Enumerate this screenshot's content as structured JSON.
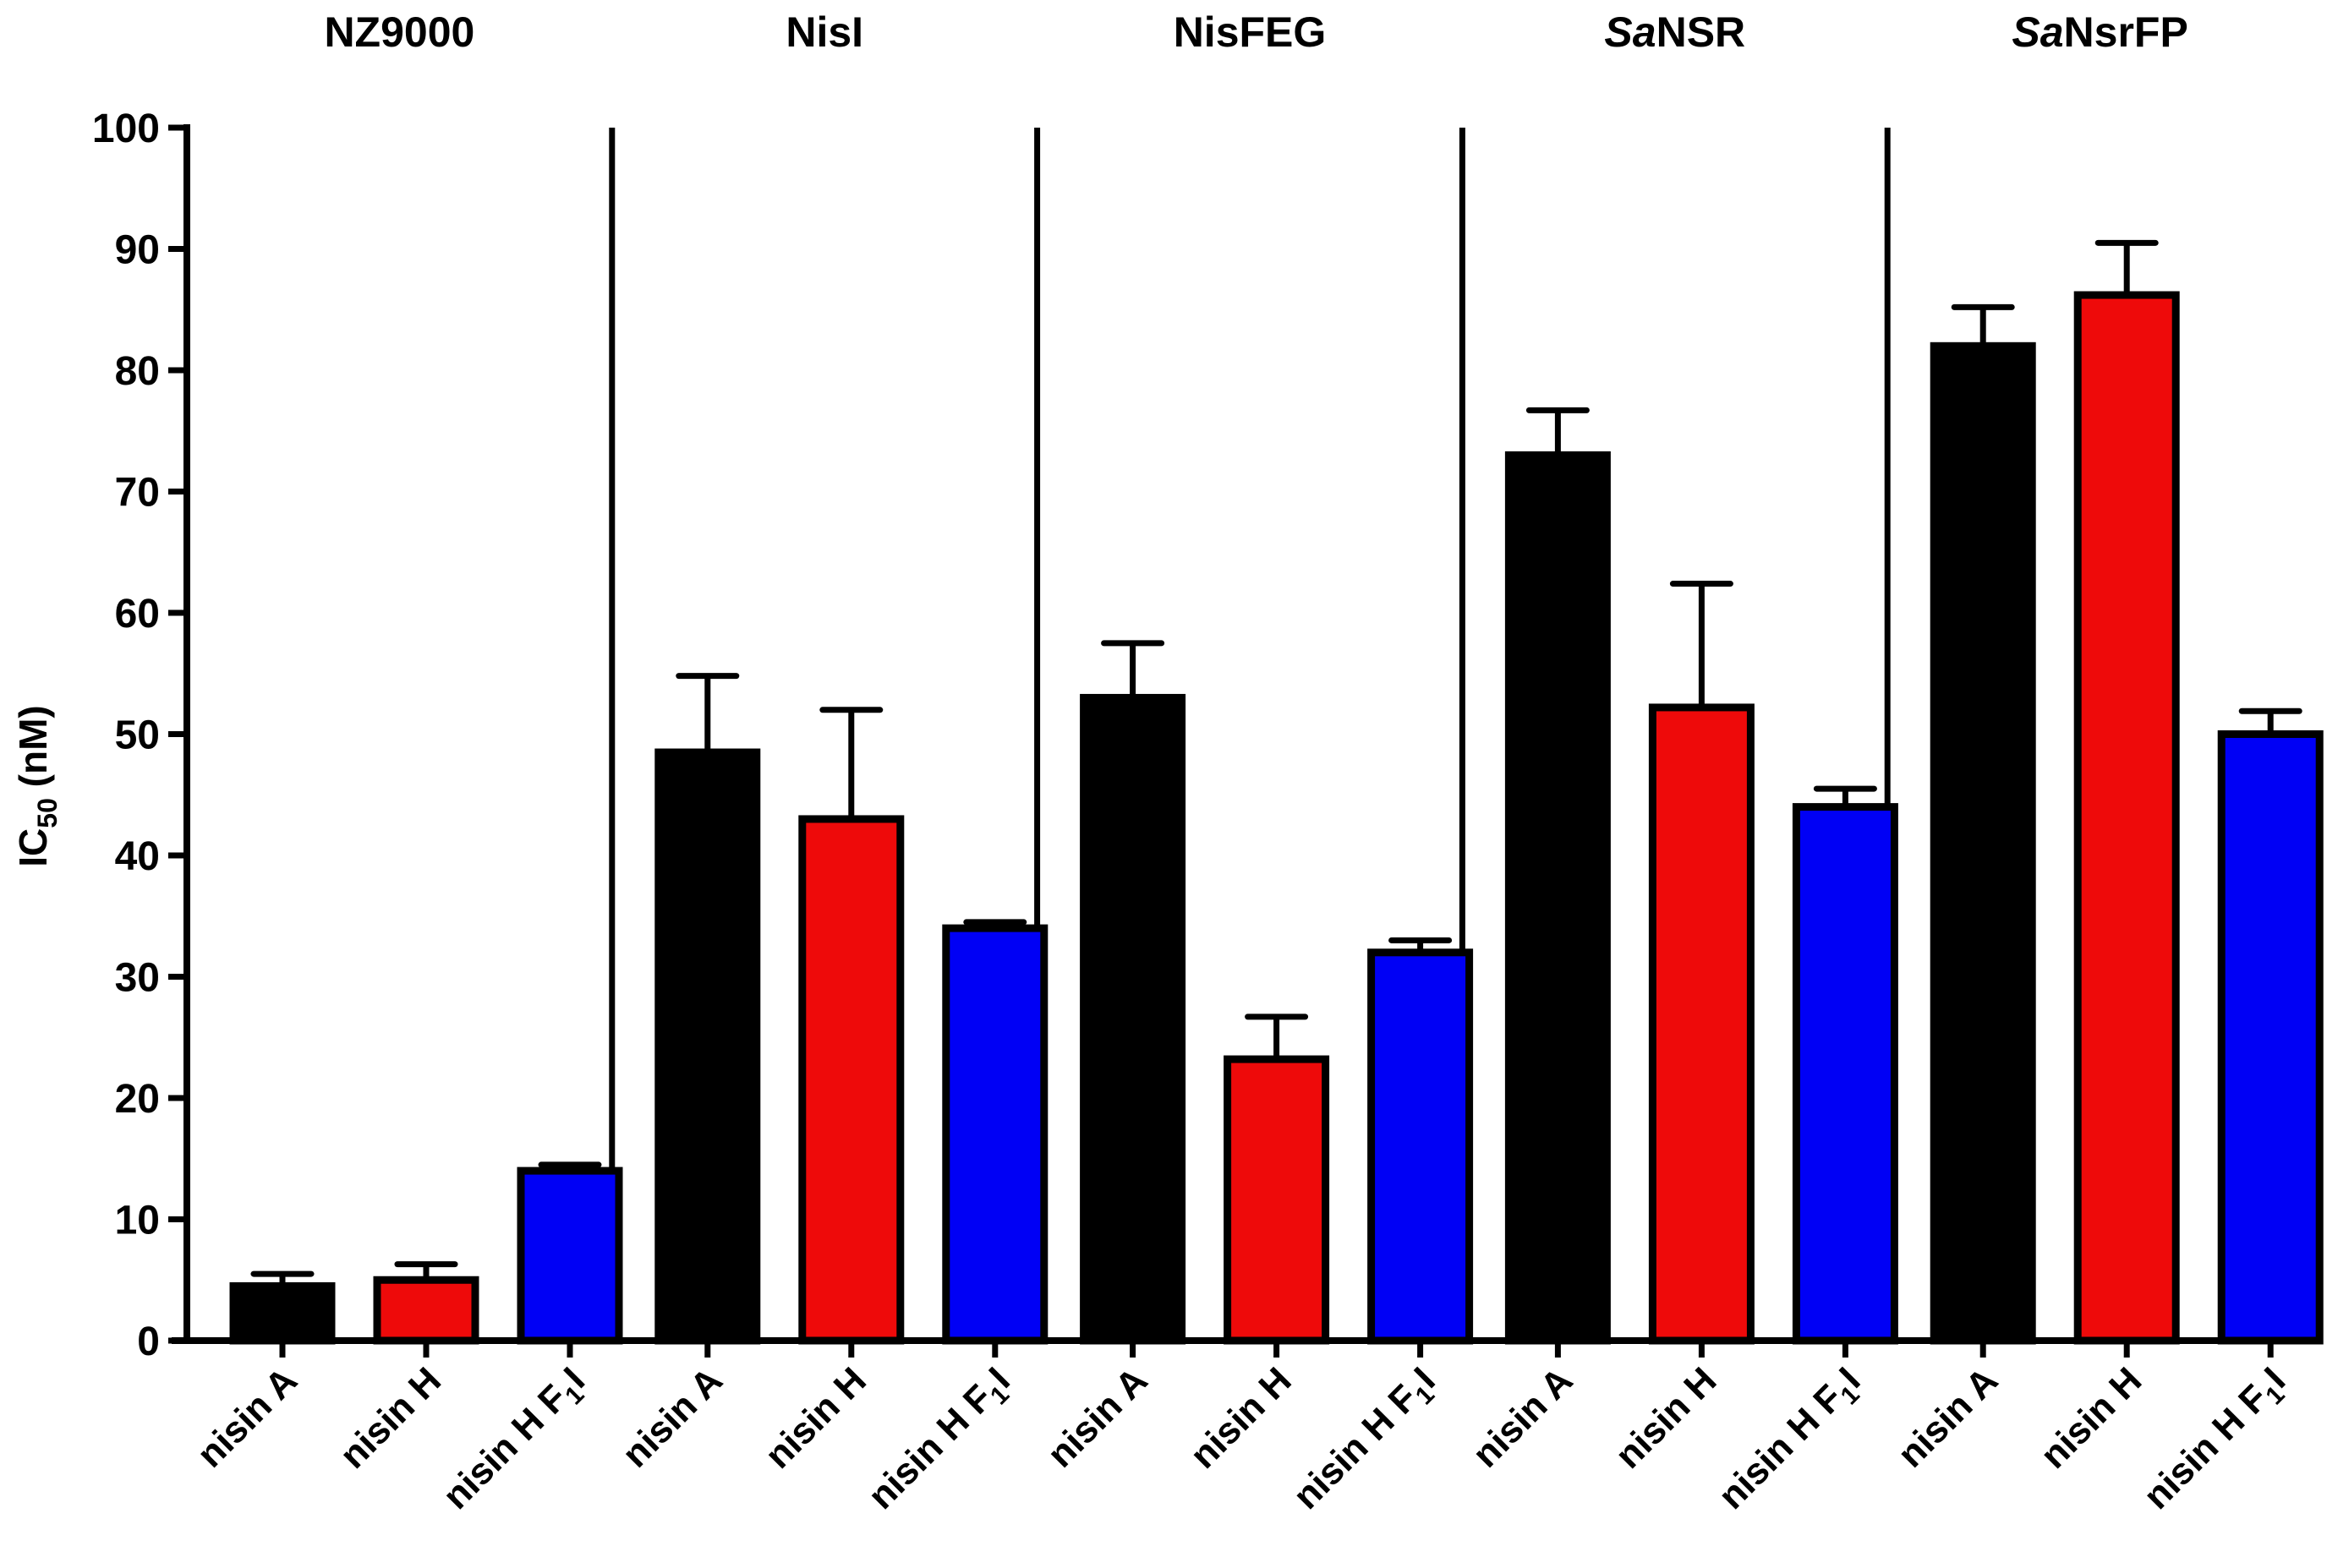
{
  "chart_data": {
    "type": "bar",
    "title": "",
    "ylabel": {
      "main": "IC",
      "sub": "50",
      "unit": " (nM)"
    },
    "ylim": [
      0,
      100
    ],
    "yticks": [
      0,
      10,
      20,
      30,
      40,
      50,
      60,
      70,
      80,
      90,
      100
    ],
    "colors": {
      "nisin A": "#000000",
      "nisin H": "#ee0a0a",
      "nisin H F1I": "#0000f5"
    },
    "categories": [
      {
        "text": "nisin A",
        "sub": "",
        "suffix": ""
      },
      {
        "text": "nisin H",
        "sub": "",
        "suffix": ""
      },
      {
        "text": "nisin H F",
        "sub": "1",
        "suffix": "I"
      }
    ],
    "groups": [
      {
        "label_italic": "",
        "label": "NZ9000",
        "values": [
          4.5,
          5.0,
          14.0
        ],
        "errors": [
          1.0,
          1.3,
          0.5
        ]
      },
      {
        "label_italic": "",
        "label": "NisI",
        "values": [
          48.5,
          43.0,
          34.0
        ],
        "errors": [
          6.3,
          9.0,
          0.5
        ]
      },
      {
        "label_italic": "",
        "label": "NisFEG",
        "values": [
          53.0,
          23.2,
          32.0
        ],
        "errors": [
          4.5,
          3.5,
          1.0
        ]
      },
      {
        "label_italic": "Sa",
        "label": "NSR",
        "values": [
          73.0,
          52.2,
          44.0
        ],
        "errors": [
          3.7,
          10.2,
          1.5
        ]
      },
      {
        "label_italic": "Sa",
        "label": "NsrFP",
        "values": [
          82.0,
          86.2,
          50.0
        ],
        "errors": [
          3.2,
          4.3,
          1.9
        ]
      }
    ]
  }
}
